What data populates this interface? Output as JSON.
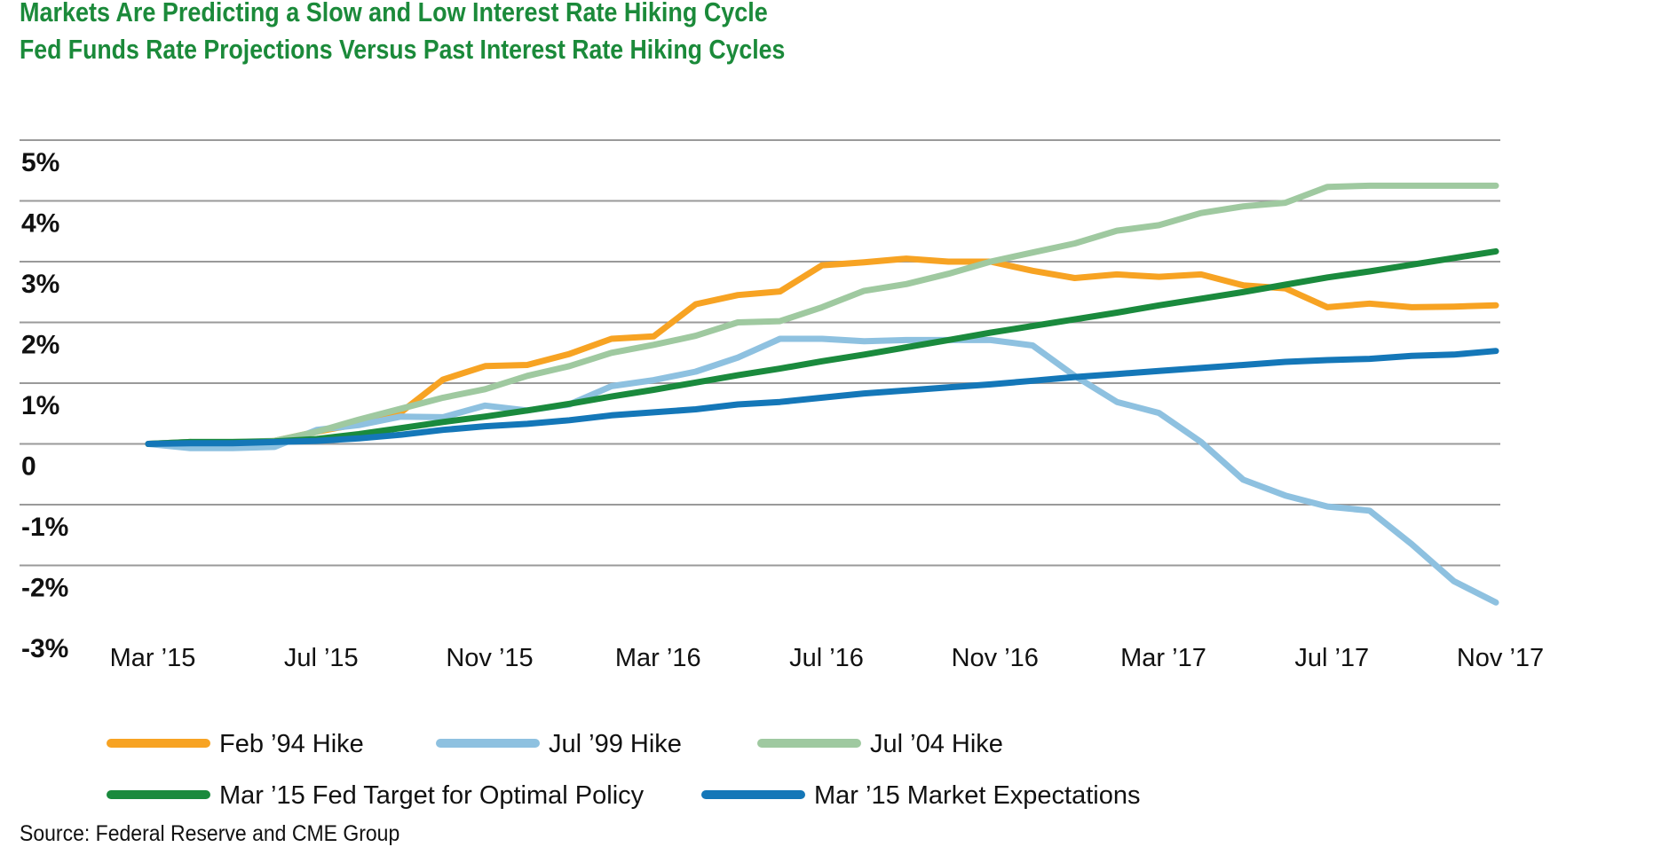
{
  "title": "Markets Are Predicting a Slow and Low Interest Rate Hiking Cycle",
  "subtitle": "Fed Funds Rate Projections Versus Past Interest Rate Hiking Cycles",
  "source": "Source: Federal Reserve and CME Group",
  "chart_data": {
    "type": "line",
    "title": "Markets Are Predicting a Slow and Low Interest Rate Hiking Cycle",
    "subtitle": "Fed Funds Rate Projections Versus Past Interest Rate Hiking Cycles",
    "xlabel": "",
    "ylabel": "",
    "x_ticks": [
      "Mar ’15",
      "Jul ’15",
      "Nov ’15",
      "Mar ’16",
      "Jul ’16",
      "Nov ’16",
      "Mar ’17",
      "Jul ’17",
      "Nov ’17"
    ],
    "y_ticks": [
      "5%",
      "4%",
      "3%",
      "2%",
      "1%",
      "0",
      "-1%",
      "-2%",
      "-3%"
    ],
    "y_tick_values": [
      5,
      4,
      3,
      2,
      1,
      0,
      -1,
      -2,
      -3
    ],
    "ylim": [
      -3,
      5
    ],
    "x_range_months": [
      0,
      32
    ],
    "grid": true,
    "legend_position": "bottom",
    "series": [
      {
        "name": "Feb ’94 Hike",
        "color": "#f7a323",
        "values": [
          0,
          0.03,
          -0.02,
          0.05,
          0.2,
          0.33,
          0.52,
          1.06,
          1.28,
          1.3,
          1.48,
          1.73,
          1.77,
          2.3,
          2.45,
          2.51,
          2.94,
          2.99,
          3.05,
          3.0,
          3.0,
          2.85,
          2.73,
          2.79,
          2.75,
          2.79,
          2.61,
          2.56,
          2.25,
          2.31,
          2.25,
          2.26,
          2.28
        ]
      },
      {
        "name": "Jul ’99 Hike",
        "color": "#8ec1e0",
        "values": [
          0,
          -0.07,
          -0.07,
          -0.05,
          0.23,
          0.31,
          0.45,
          0.44,
          0.63,
          0.55,
          0.65,
          0.95,
          1.05,
          1.19,
          1.42,
          1.73,
          1.73,
          1.69,
          1.71,
          1.71,
          1.71,
          1.62,
          1.12,
          0.69,
          0.51,
          0.03,
          -0.59,
          -0.85,
          -1.03,
          -1.1,
          -1.65,
          -2.26,
          -2.61
        ]
      },
      {
        "name": "Jul ’04 Hike",
        "color": "#9fc9a0",
        "values": [
          0,
          0.03,
          0.03,
          0.05,
          0.2,
          0.4,
          0.58,
          0.76,
          0.9,
          1.12,
          1.28,
          1.5,
          1.63,
          1.78,
          2.0,
          2.02,
          2.25,
          2.52,
          2.63,
          2.8,
          3.0,
          3.15,
          3.3,
          3.51,
          3.6,
          3.8,
          3.91,
          3.97,
          4.23,
          4.25,
          4.25,
          4.25,
          4.25
        ]
      },
      {
        "name": "Mar ’15 Fed Target for Optimal Policy",
        "color": "#1a8a3d",
        "values": [
          0,
          0.03,
          0.03,
          0.04,
          0.08,
          0.16,
          0.26,
          0.36,
          0.45,
          0.55,
          0.66,
          0.78,
          0.89,
          1.01,
          1.13,
          1.24,
          1.36,
          1.47,
          1.59,
          1.71,
          1.83,
          1.94,
          2.05,
          2.16,
          2.28,
          2.39,
          2.5,
          2.62,
          2.74,
          2.84,
          2.95,
          3.06,
          3.17
        ]
      },
      {
        "name": "Mar ’15 Market Expectations",
        "color": "#1477b8",
        "values": [
          0,
          0.01,
          0.01,
          0.03,
          0.05,
          0.09,
          0.15,
          0.23,
          0.29,
          0.33,
          0.39,
          0.47,
          0.52,
          0.57,
          0.65,
          0.69,
          0.76,
          0.83,
          0.88,
          0.93,
          0.98,
          1.04,
          1.1,
          1.15,
          1.2,
          1.25,
          1.3,
          1.35,
          1.38,
          1.4,
          1.45,
          1.47,
          1.53
        ]
      }
    ]
  }
}
